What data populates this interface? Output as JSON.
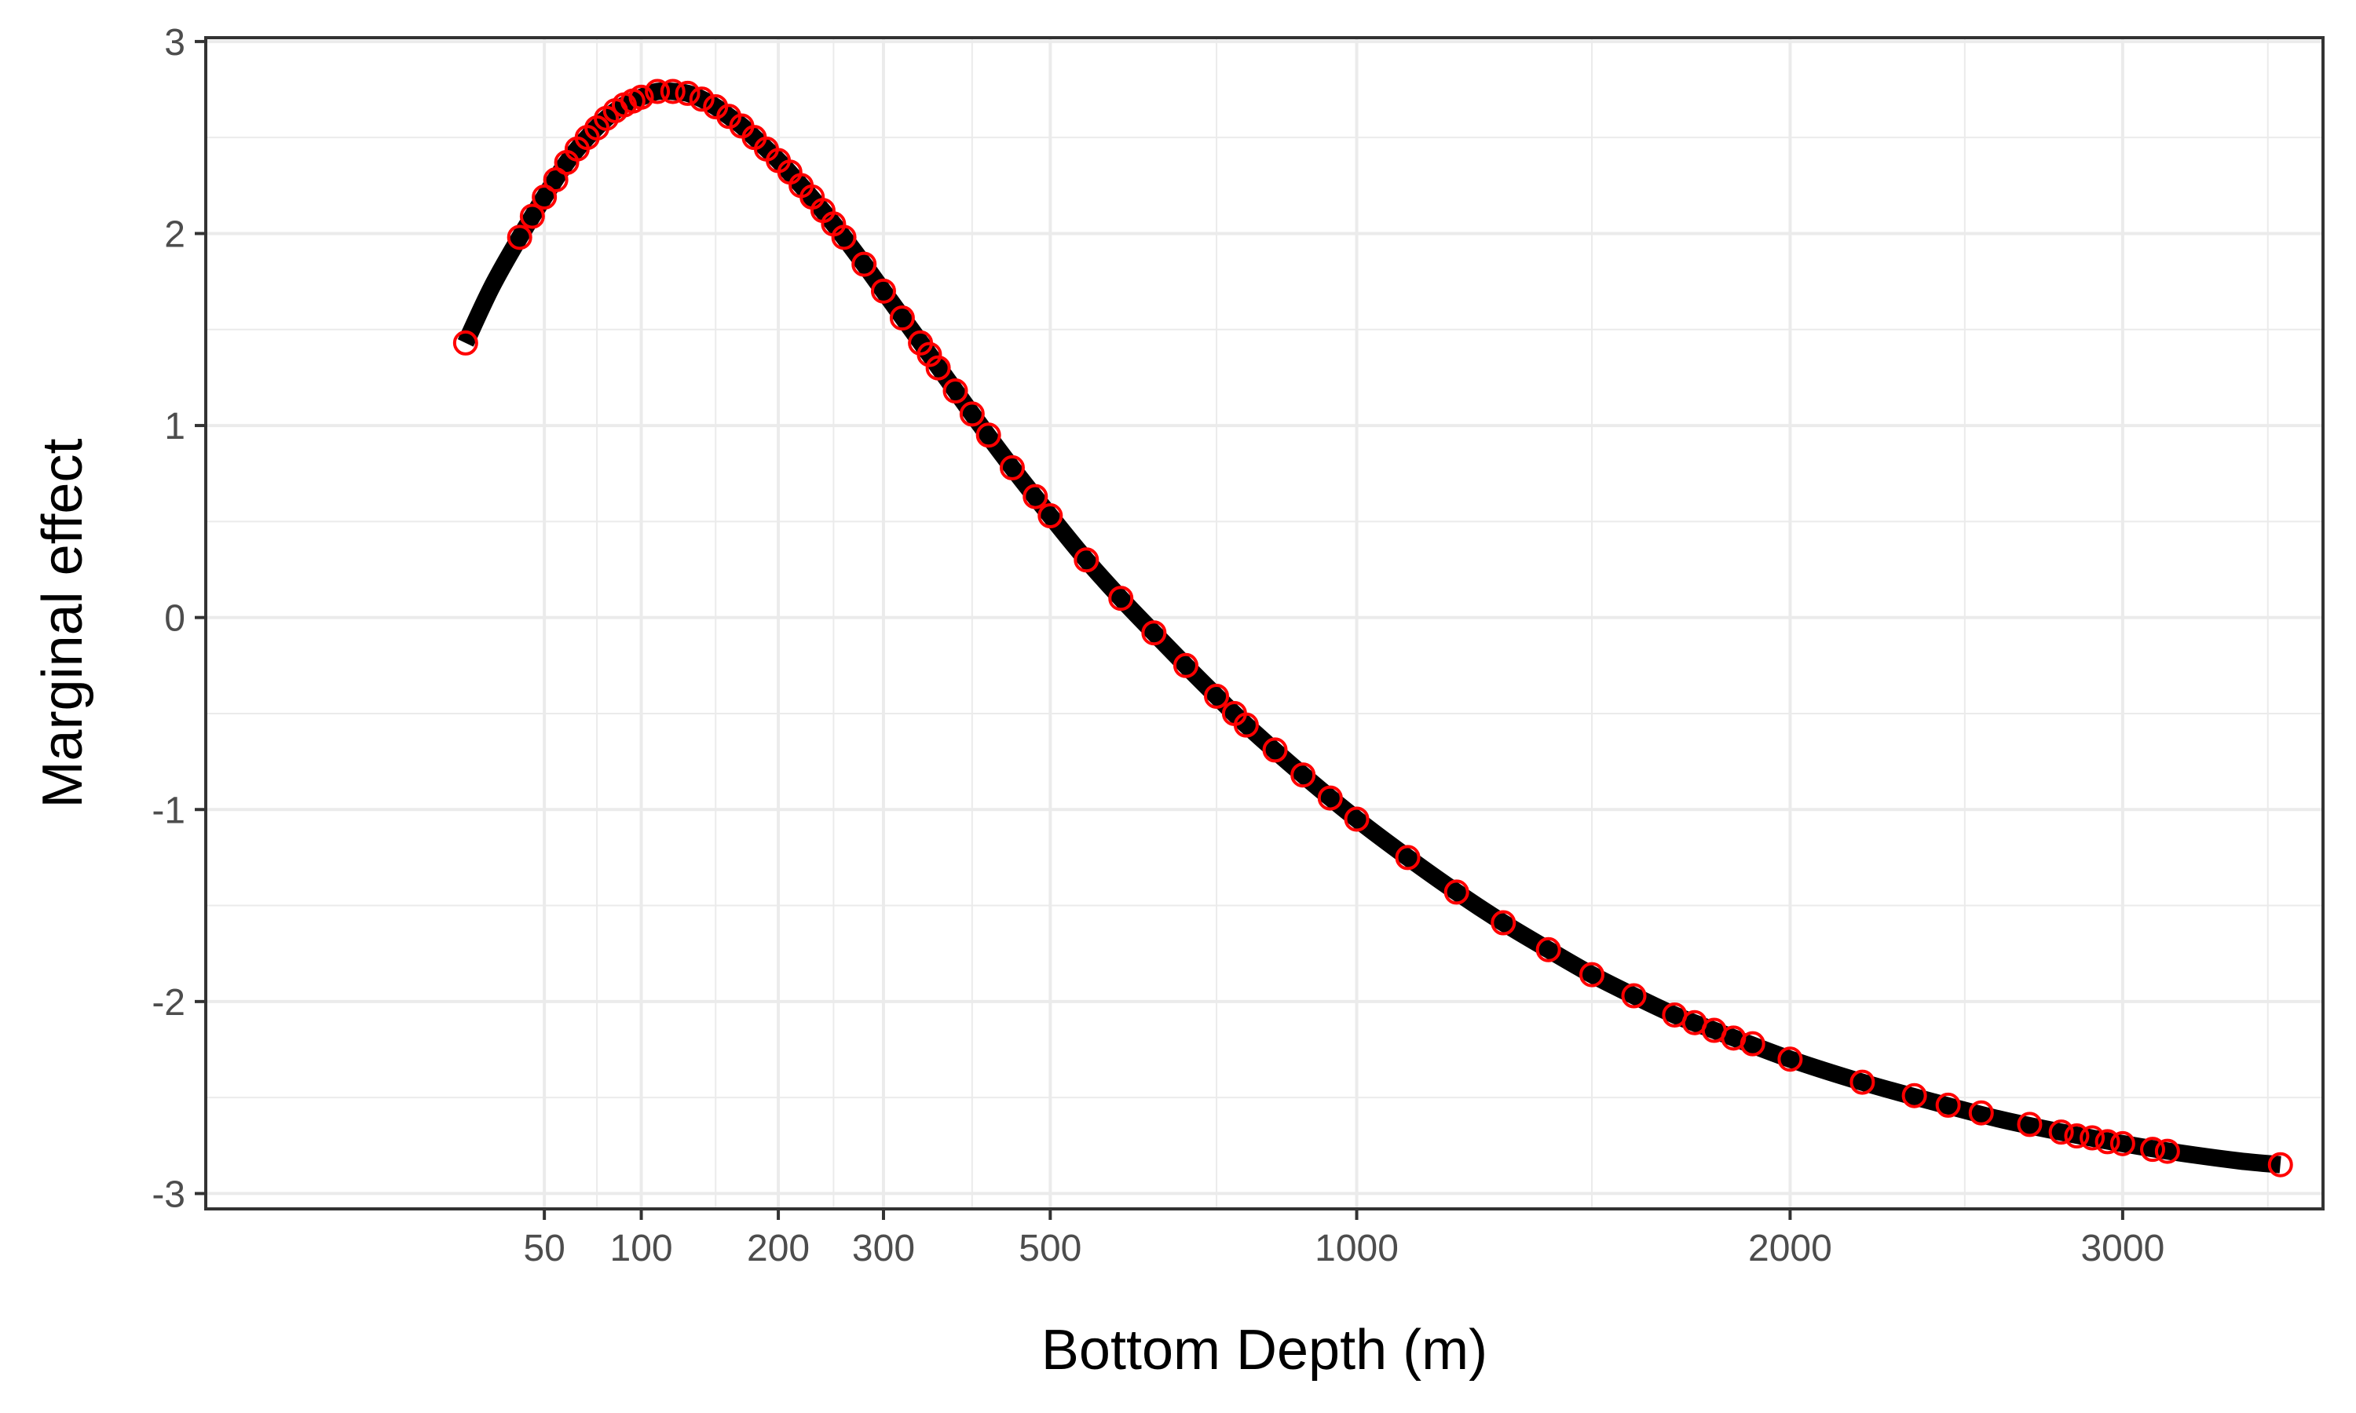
{
  "chart_data": {
    "type": "line",
    "xlabel": "Bottom Depth (m)",
    "ylabel": "Marginal effect",
    "x_scale": "sqrt",
    "x_ticks": [
      50,
      100,
      200,
      300,
      500,
      1000,
      2000,
      3000
    ],
    "x_minor_ticks": [
      75,
      150,
      250,
      400,
      750,
      1500,
      2500,
      3500
    ],
    "xlim": [
      -10,
      3700
    ],
    "y_ticks": [
      3,
      2,
      1,
      0,
      -1,
      -2,
      -3
    ],
    "ylim": [
      -3.08,
      3.02
    ],
    "grid": true,
    "colors": {
      "line": "#000000",
      "points": "#ff0000",
      "grid": "#ebebeb",
      "panel_border": "#333333"
    },
    "series": [
      {
        "style": "thick-line",
        "x": [
          22,
          30,
          40,
          50,
          60,
          70,
          80,
          90,
          100,
          110,
          120,
          130,
          140,
          150,
          160,
          170,
          180,
          200,
          220,
          250,
          280,
          300,
          350,
          400,
          450,
          500,
          550,
          600,
          650,
          700,
          750,
          800,
          900,
          1000,
          1100,
          1200,
          1300,
          1400,
          1500,
          1600,
          1700,
          1800,
          2000,
          2200,
          2400,
          2600,
          2800,
          3000,
          3200,
          3400,
          3545
        ],
        "y": [
          1.43,
          1.72,
          1.98,
          2.19,
          2.37,
          2.5,
          2.6,
          2.67,
          2.71,
          2.74,
          2.74,
          2.73,
          2.7,
          2.66,
          2.61,
          2.56,
          2.5,
          2.38,
          2.25,
          2.05,
          1.84,
          1.7,
          1.37,
          1.06,
          0.78,
          0.53,
          0.3,
          0.1,
          -0.08,
          -0.25,
          -0.41,
          -0.56,
          -0.82,
          -1.05,
          -1.25,
          -1.43,
          -1.59,
          -1.73,
          -1.86,
          -1.97,
          -2.07,
          -2.15,
          -2.3,
          -2.42,
          -2.52,
          -2.61,
          -2.68,
          -2.74,
          -2.79,
          -2.83,
          -2.85
        ]
      },
      {
        "style": "points",
        "x": [
          22,
          40,
          45,
          50,
          55,
          60,
          65,
          70,
          75,
          80,
          85,
          90,
          95,
          100,
          110,
          120,
          130,
          140,
          150,
          160,
          170,
          180,
          190,
          200,
          210,
          220,
          230,
          240,
          250,
          260,
          280,
          300,
          320,
          340,
          350,
          360,
          380,
          400,
          420,
          450,
          480,
          500,
          550,
          600,
          650,
          700,
          750,
          780,
          800,
          850,
          900,
          950,
          1000,
          1100,
          1200,
          1300,
          1400,
          1500,
          1600,
          1700,
          1750,
          1800,
          1850,
          1900,
          2000,
          2200,
          2350,
          2450,
          2550,
          2700,
          2800,
          2850,
          2900,
          2950,
          3000,
          3100,
          3150,
          3545
        ],
        "y": [
          1.43,
          1.98,
          2.09,
          2.19,
          2.28,
          2.37,
          2.44,
          2.5,
          2.55,
          2.6,
          2.64,
          2.67,
          2.69,
          2.71,
          2.74,
          2.74,
          2.73,
          2.7,
          2.66,
          2.61,
          2.56,
          2.5,
          2.44,
          2.38,
          2.32,
          2.25,
          2.19,
          2.12,
          2.05,
          1.98,
          1.84,
          1.7,
          1.56,
          1.43,
          1.37,
          1.3,
          1.18,
          1.06,
          0.95,
          0.78,
          0.63,
          0.53,
          0.3,
          0.1,
          -0.08,
          -0.25,
          -0.41,
          -0.5,
          -0.56,
          -0.69,
          -0.82,
          -0.94,
          -1.05,
          -1.25,
          -1.43,
          -1.59,
          -1.73,
          -1.86,
          -1.97,
          -2.07,
          -2.11,
          -2.15,
          -2.19,
          -2.22,
          -2.3,
          -2.42,
          -2.49,
          -2.54,
          -2.58,
          -2.64,
          -2.68,
          -2.7,
          -2.71,
          -2.73,
          -2.74,
          -2.77,
          -2.78,
          -2.85
        ]
      }
    ]
  }
}
